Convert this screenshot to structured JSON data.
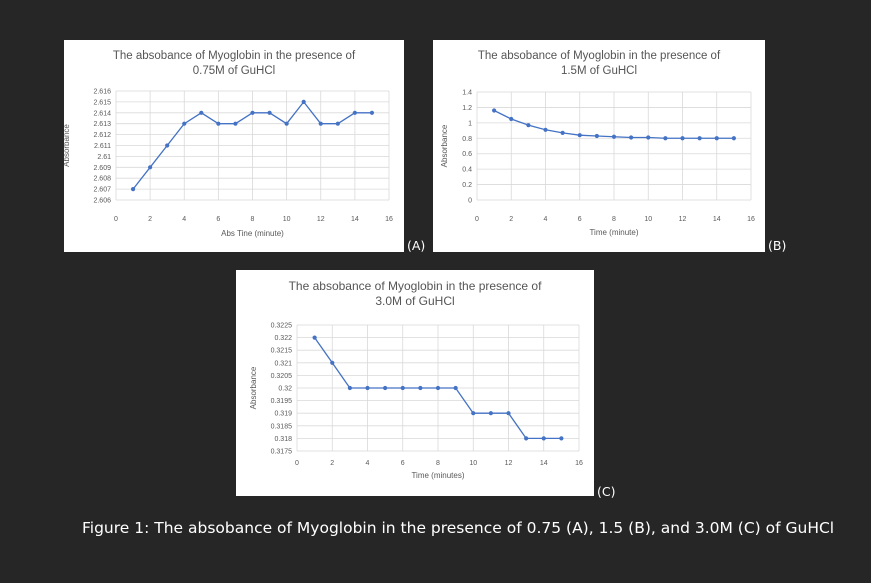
{
  "colors": {
    "background": "#262626",
    "panel": "#ffffff",
    "series": "#4472c4",
    "grid": "#d9d9d9",
    "text": "#595959"
  },
  "caption": "Figure 1: The absobance of Myoglobin in the presence of 0.75 (A), 1.5 (B), and 3.0M (C) of GuHCl",
  "chart_data": [
    {
      "id": "A",
      "type": "line",
      "tag": "(A)",
      "title_line1": "The absobance of Myoglobin in the presence of",
      "title_line2": "0.75M of GuHCl",
      "xlabel": "Abs Tine (minute)",
      "ylabel": "Absorbance",
      "xlim": [
        0,
        16
      ],
      "xticks": [
        "0",
        "2",
        "4",
        "6",
        "8",
        "10",
        "12",
        "14",
        "16"
      ],
      "ylim": [
        2.606,
        2.616
      ],
      "yticks": [
        "2.616",
        "2.615",
        "2.614",
        "2.613",
        "2.612",
        "2.611",
        "2.61",
        "2.609",
        "2.608",
        "2.607",
        "2.606"
      ],
      "x": [
        1,
        2,
        3,
        4,
        5,
        6,
        7,
        8,
        9,
        10,
        11,
        12,
        13,
        14,
        15
      ],
      "y": [
        2.607,
        2.609,
        2.611,
        2.613,
        2.614,
        2.613,
        2.613,
        2.614,
        2.614,
        2.613,
        2.615,
        2.613,
        2.613,
        2.614,
        2.614
      ]
    },
    {
      "id": "B",
      "type": "line",
      "tag": "(B)",
      "title_line1": "The absobance of Myoglobin in the presence of",
      "title_line2": "1.5M of GuHCl",
      "xlabel": "Time (minute)",
      "ylabel": "Absorbance",
      "xlim": [
        0,
        16
      ],
      "xticks": [
        "0",
        "2",
        "4",
        "6",
        "8",
        "10",
        "12",
        "14",
        "16"
      ],
      "ylim": [
        0,
        1.4
      ],
      "yticks": [
        "1.4",
        "1.2",
        "1",
        "0.8",
        "0.6",
        "0.4",
        "0.2",
        "0"
      ],
      "x": [
        1,
        2,
        3,
        4,
        5,
        6,
        7,
        8,
        9,
        10,
        11,
        12,
        13,
        14,
        15
      ],
      "y": [
        1.16,
        1.05,
        0.97,
        0.91,
        0.87,
        0.84,
        0.83,
        0.82,
        0.81,
        0.81,
        0.8,
        0.8,
        0.8,
        0.8,
        0.8
      ]
    },
    {
      "id": "C",
      "type": "line",
      "tag": "(C)",
      "title_line1": "The absobance of Myoglobin in the presence of",
      "title_line2": "3.0M of GuHCl",
      "xlabel": "Time (minutes)",
      "ylabel": "Absorbance",
      "xlim": [
        0,
        16
      ],
      "xticks": [
        "0",
        "2",
        "4",
        "6",
        "8",
        "10",
        "12",
        "14",
        "16"
      ],
      "ylim": [
        0.3175,
        0.3225
      ],
      "yticks": [
        "0.3225",
        "0.322",
        "0.3215",
        "0.321",
        "0.3205",
        "0.32",
        "0.3195",
        "0.319",
        "0.3185",
        "0.318",
        "0.3175"
      ],
      "x": [
        1,
        2,
        3,
        4,
        5,
        6,
        7,
        8,
        9,
        10,
        11,
        12,
        13,
        14,
        15
      ],
      "y": [
        0.322,
        0.321,
        0.32,
        0.32,
        0.32,
        0.32,
        0.32,
        0.32,
        0.32,
        0.319,
        0.319,
        0.319,
        0.318,
        0.318,
        0.318
      ]
    }
  ]
}
